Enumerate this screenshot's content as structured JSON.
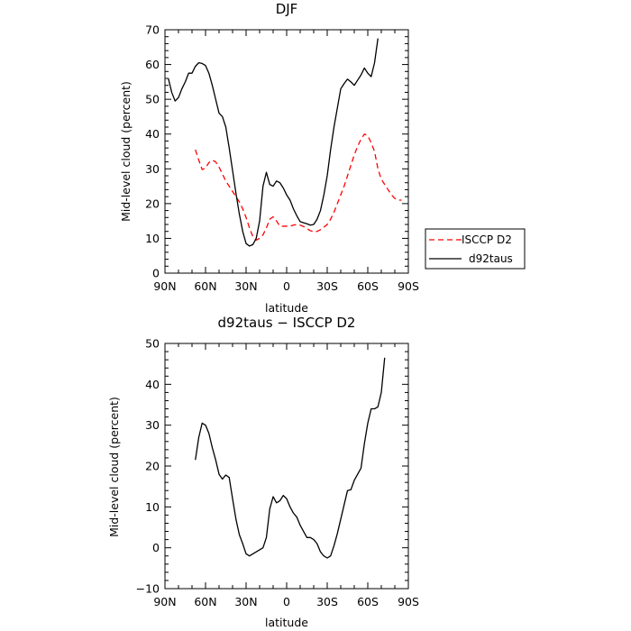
{
  "chart_data": [
    {
      "type": "line",
      "title": "DJF",
      "xlabel": "latitude",
      "ylabel": "Mid-level cloud (percent)",
      "xlim": [
        90,
        -90
      ],
      "ylim": [
        0,
        70
      ],
      "yticks": [
        0,
        10,
        20,
        30,
        40,
        50,
        60,
        70
      ],
      "xticks": [
        90,
        60,
        30,
        0,
        -30,
        -60,
        -90
      ],
      "xtick_labels": [
        "90N",
        "60N",
        "30N",
        "0",
        "30S",
        "60S",
        "90S"
      ],
      "legend": "right of plot",
      "series": [
        {
          "name": "ISCCP D2",
          "color": "#ff0000",
          "dash": "dashed",
          "x": [
            67.5,
            65,
            62.5,
            60,
            57.5,
            55,
            52.5,
            50,
            47.5,
            45,
            42.5,
            40,
            37.5,
            35,
            32.5,
            30,
            27.5,
            25,
            22.5,
            20,
            17.5,
            15,
            12.5,
            10,
            7.5,
            5,
            2.5,
            0,
            -2.5,
            -5,
            -7.5,
            -10,
            -12.5,
            -15,
            -17.5,
            -20,
            -22.5,
            -25,
            -27.5,
            -30,
            -32.5,
            -35,
            -37.5,
            -40,
            -42.5,
            -45,
            -47.5,
            -50,
            -52.5,
            -55,
            -57.5,
            -60,
            -62.5,
            -65,
            -67.5,
            -70,
            -72.5,
            -75,
            -77.5,
            -80,
            -82.5,
            -85,
            -87.5
          ],
          "values": [
            35.5,
            32.5,
            29.8,
            30.2,
            31.8,
            32.5,
            32.0,
            30.5,
            28.5,
            26.5,
            25.0,
            23.5,
            22.0,
            20.5,
            18.5,
            16.0,
            13.0,
            10.5,
            9.5,
            10.0,
            11.0,
            13.0,
            15.5,
            16.2,
            15.0,
            13.5,
            13.5,
            13.5,
            13.5,
            13.8,
            14.0,
            13.8,
            13.4,
            12.8,
            12.2,
            11.9,
            12.0,
            12.5,
            13.2,
            14.0,
            15.5,
            17.5,
            20.0,
            22.5,
            25.0,
            28.0,
            31.0,
            34.0,
            36.5,
            38.5,
            40.0,
            39.5,
            37.5,
            35.0,
            30.0,
            27.0,
            25.5,
            24.0,
            22.5,
            21.5,
            21.0,
            21.0,
            null
          ]
        },
        {
          "name": "d92taus",
          "color": "#000000",
          "dash": "solid",
          "x": [
            87.5,
            85,
            82.5,
            80,
            77.5,
            75,
            72.5,
            70,
            67.5,
            65,
            62.5,
            60,
            57.5,
            55,
            52.5,
            50,
            47.5,
            45,
            42.5,
            40,
            37.5,
            35,
            32.5,
            30,
            27.5,
            25,
            22.5,
            20,
            17.5,
            15,
            12.5,
            10,
            7.5,
            5,
            2.5,
            0,
            -2.5,
            -5,
            -7.5,
            -10,
            -12.5,
            -15,
            -17.5,
            -20,
            -22.5,
            -25,
            -27.5,
            -30,
            -32.5,
            -35,
            -37.5,
            -40,
            -42.5,
            -45,
            -47.5,
            -50,
            -52.5,
            -55,
            -57.5,
            -60,
            -62.5,
            -65,
            -67.5,
            -70,
            -72.5,
            -75,
            -77.5,
            -80,
            -82.5,
            -85,
            -87.5
          ],
          "values": [
            56.0,
            52.0,
            49.5,
            50.5,
            53.0,
            55.0,
            57.5,
            57.5,
            59.5,
            60.5,
            60.3,
            59.7,
            57.5,
            54.0,
            50.0,
            46.0,
            45.0,
            42.0,
            36.0,
            29.5,
            23.0,
            17.0,
            12.0,
            8.5,
            7.8,
            8.2,
            10.0,
            15.0,
            25.0,
            29.0,
            25.5,
            25.0,
            26.5,
            26.0,
            24.5,
            22.5,
            21.0,
            18.5,
            16.5,
            14.8,
            14.5,
            14.2,
            13.8,
            14.0,
            15.5,
            18.0,
            22.5,
            28.0,
            35.5,
            42.0,
            47.5,
            53.0,
            54.5,
            55.8,
            55.0,
            54.0,
            55.5,
            57.0,
            59.0,
            57.5,
            56.5,
            60.5,
            67.5,
            null,
            null,
            null,
            null,
            null,
            null,
            null,
            null
          ]
        }
      ],
      "legend_entries": [
        "ISCCP D2",
        "d92taus"
      ]
    },
    {
      "type": "line",
      "title": "d92taus − ISCCP D2",
      "xlabel": "latitude",
      "ylabel": "Mid-level cloud (percent)",
      "xlim": [
        90,
        -90
      ],
      "ylim": [
        -10,
        50
      ],
      "yticks": [
        -10,
        0,
        10,
        20,
        30,
        40,
        50
      ],
      "xticks": [
        90,
        60,
        30,
        0,
        -30,
        -60,
        -90
      ],
      "xtick_labels": [
        "90N",
        "60N",
        "30N",
        "0",
        "30S",
        "60S",
        "90S"
      ],
      "series": [
        {
          "color": "#000000",
          "dash": "solid",
          "x": [
            67.5,
            65,
            62.5,
            60,
            57.5,
            55,
            52.5,
            50,
            47.5,
            45,
            42.5,
            40,
            37.5,
            35,
            32.5,
            30,
            27.5,
            25,
            22.5,
            20,
            17.5,
            15,
            12.5,
            10,
            7.5,
            5,
            2.5,
            0,
            -2.5,
            -5,
            -7.5,
            -10,
            -12.5,
            -15,
            -17.5,
            -20,
            -22.5,
            -25,
            -27.5,
            -30,
            -32.5,
            -35,
            -37.5,
            -40,
            -42.5,
            -45,
            -47.5,
            -50,
            -52.5,
            -55,
            -57.5,
            -60,
            -62.5,
            -65,
            -67.5,
            -70,
            -72.5,
            -75,
            -77.5,
            -80,
            -82.5,
            -85,
            -87.5
          ],
          "values": [
            21.5,
            27.0,
            30.5,
            30.0,
            28.0,
            24.5,
            21.5,
            18.0,
            16.8,
            17.8,
            17.2,
            12.0,
            7.0,
            3.2,
            1.0,
            -1.5,
            -2.0,
            -1.5,
            -1.0,
            -0.5,
            0.0,
            2.5,
            9.5,
            12.5,
            11.0,
            11.5,
            12.8,
            12.0,
            10.0,
            8.5,
            7.5,
            5.5,
            4.0,
            2.5,
            2.5,
            2.0,
            1.0,
            -1.0,
            -2.0,
            -2.5,
            -2.0,
            0.5,
            3.5,
            7.0,
            10.5,
            14.0,
            14.2,
            16.5,
            18.0,
            19.5,
            25.5,
            30.5,
            34.0,
            34.0,
            34.5,
            38.0,
            46.5,
            null,
            null,
            null,
            null,
            null,
            null
          ]
        }
      ]
    }
  ]
}
